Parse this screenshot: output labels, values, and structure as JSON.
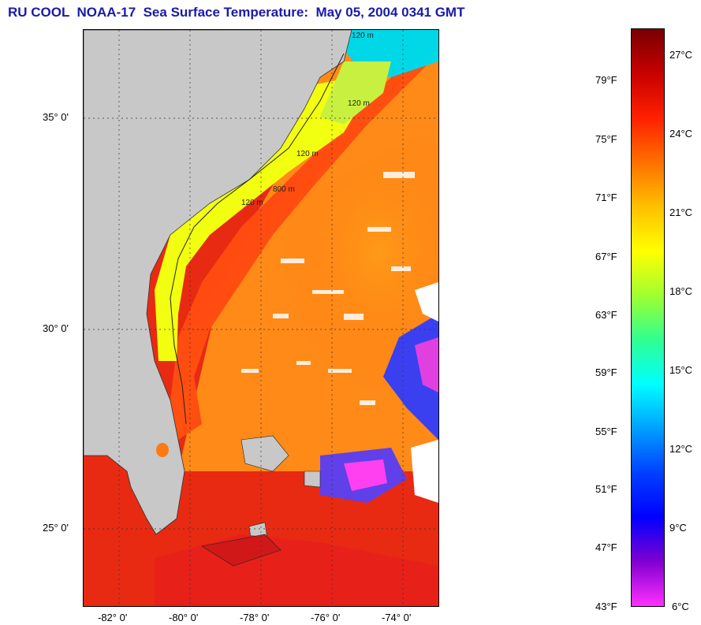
{
  "title": "RU COOL  NOAA-17  Sea Surface Temperature:  May 05, 2004 0341 GMT",
  "map": {
    "region": "US Southeast Atlantic coast (Florida to North Carolina)",
    "lat_labels": [
      "35° 0'",
      "30° 0'",
      "25° 0'"
    ],
    "lon_labels": [
      "-82° 0'",
      "-80° 0'",
      "-78° 0'",
      "-76° 0'",
      "-74° 0'"
    ],
    "contour_labels": [
      "120 m",
      "120 m",
      "120 m",
      "800 m",
      "120 m"
    ],
    "grid": true
  },
  "colorbar": {
    "fahrenheit_labels": [
      "79°F",
      "75°F",
      "71°F",
      "67°F",
      "63°F",
      "59°F",
      "55°F",
      "51°F",
      "47°F",
      "43°F"
    ],
    "celsius_labels": [
      "27°C",
      "24°C",
      "21°C",
      "18°C",
      "15°C",
      "12°C",
      "9°C",
      "6°C"
    ],
    "colors": [
      "#780000",
      "#c80000",
      "#ff2000",
      "#ff7000",
      "#ffc000",
      "#ffff00",
      "#a0ff30",
      "#30ff90",
      "#00ffff",
      "#00a0ff",
      "#0040ff",
      "#0000ff",
      "#8000d0",
      "#ff30ff"
    ]
  }
}
